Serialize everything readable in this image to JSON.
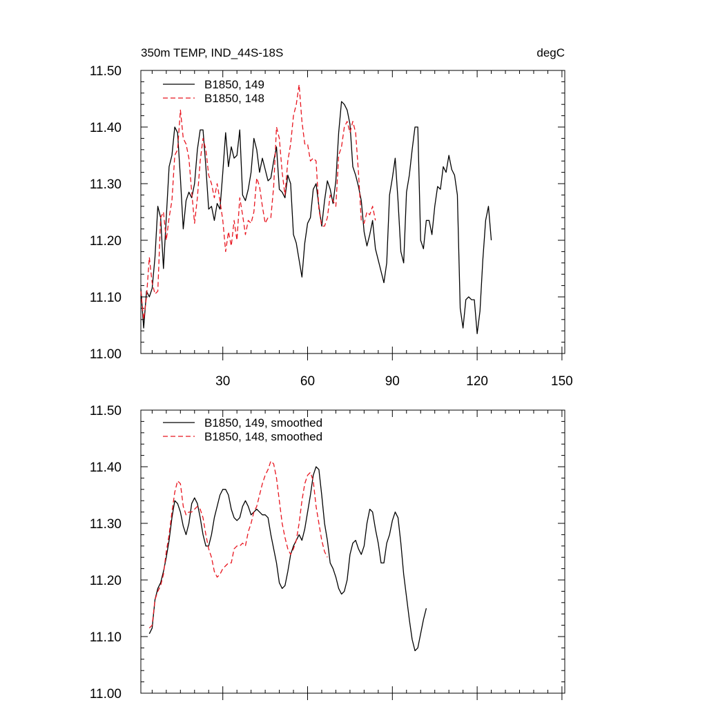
{
  "chart_data": [
    {
      "type": "line",
      "title": "350m TEMP, IND_44S-18S",
      "units": "degC",
      "xlim": [
        1,
        151
      ],
      "ylim": [
        11.0,
        11.5
      ],
      "xticks": [
        30,
        60,
        90,
        120,
        150
      ],
      "yticks": [
        "11.00",
        "11.10",
        "11.20",
        "11.30",
        "11.40",
        "11.50"
      ],
      "grid": false,
      "legend_position": "top-left",
      "series": [
        {
          "name": "B1850, 149",
          "color": "#000000",
          "dash": "solid",
          "x_start": 1,
          "values": [
            11.115,
            11.045,
            11.11,
            11.1,
            11.115,
            11.17,
            11.26,
            11.24,
            11.15,
            11.24,
            11.33,
            11.35,
            11.4,
            11.39,
            11.31,
            11.22,
            11.27,
            11.285,
            11.275,
            11.3,
            11.36,
            11.395,
            11.395,
            11.33,
            11.255,
            11.26,
            11.235,
            11.265,
            11.255,
            11.32,
            11.39,
            11.33,
            11.365,
            11.345,
            11.35,
            11.395,
            11.28,
            11.27,
            11.29,
            11.32,
            11.38,
            11.36,
            11.32,
            11.345,
            11.325,
            11.305,
            11.31,
            11.34,
            11.365,
            11.29,
            11.285,
            11.275,
            11.315,
            11.3,
            11.21,
            11.195,
            11.165,
            11.135,
            11.195,
            11.23,
            11.24,
            11.29,
            11.3,
            11.26,
            11.225,
            11.27,
            11.305,
            11.29,
            11.265,
            11.305,
            11.39,
            11.445,
            11.44,
            11.43,
            11.405,
            11.33,
            11.315,
            11.295,
            11.27,
            11.215,
            11.19,
            11.21,
            11.235,
            11.185,
            11.165,
            11.145,
            11.125,
            11.16,
            11.28,
            11.31,
            11.345,
            11.27,
            11.18,
            11.16,
            11.285,
            11.315,
            11.36,
            11.4,
            11.4,
            11.2,
            11.185,
            11.235,
            11.235,
            11.21,
            11.26,
            11.295,
            11.29,
            11.33,
            11.32,
            11.35,
            11.325,
            11.315,
            11.28,
            11.08,
            11.045,
            11.095,
            11.1,
            11.095,
            11.095,
            11.035,
            11.075,
            11.165,
            11.235,
            11.26,
            11.2
          ]
        },
        {
          "name": "B1850, 148",
          "color": "#e8141e",
          "dash": "dashed",
          "x_start": 1,
          "values": [
            11.11,
            11.06,
            11.1,
            11.17,
            11.125,
            11.105,
            11.11,
            11.24,
            11.25,
            11.2,
            11.24,
            11.27,
            11.35,
            11.36,
            11.43,
            11.38,
            11.37,
            11.345,
            11.285,
            11.23,
            11.275,
            11.34,
            11.38,
            11.36,
            11.315,
            11.3,
            11.275,
            11.3,
            11.27,
            11.235,
            11.18,
            11.215,
            11.19,
            11.235,
            11.2,
            11.275,
            11.245,
            11.21,
            11.235,
            11.23,
            11.25,
            11.31,
            11.295,
            11.26,
            11.23,
            11.24,
            11.24,
            11.295,
            11.4,
            11.38,
            11.32,
            11.28,
            11.34,
            11.37,
            11.42,
            11.44,
            11.475,
            11.41,
            11.37,
            11.37,
            11.34,
            11.345,
            11.34,
            11.255,
            11.225,
            11.225,
            11.24,
            11.28,
            11.27,
            11.26,
            11.35,
            11.365,
            11.4,
            11.41,
            11.39,
            11.41,
            11.39,
            11.32,
            11.235,
            11.23,
            11.25,
            11.245,
            11.26,
            11.235
          ]
        }
      ]
    },
    {
      "type": "line",
      "ylim": [
        11.0,
        11.5
      ],
      "xlim": [
        1,
        151
      ],
      "yticks": [
        "11.00",
        "11.10",
        "11.20",
        "11.30",
        "11.40",
        "11.50"
      ],
      "grid": false,
      "legend_position": "top-left",
      "series": [
        {
          "name": "B1850, 149, smoothed",
          "color": "#000000",
          "dash": "solid",
          "x_start": 4,
          "values": [
            11.105,
            11.115,
            11.165,
            11.185,
            11.195,
            11.215,
            11.24,
            11.27,
            11.31,
            11.34,
            11.335,
            11.32,
            11.295,
            11.28,
            11.3,
            11.335,
            11.345,
            11.335,
            11.31,
            11.28,
            11.26,
            11.26,
            11.28,
            11.31,
            11.33,
            11.35,
            11.36,
            11.36,
            11.35,
            11.325,
            11.31,
            11.305,
            11.31,
            11.33,
            11.34,
            11.33,
            11.315,
            11.32,
            11.325,
            11.32,
            11.315,
            11.315,
            11.31,
            11.28,
            11.255,
            11.23,
            11.195,
            11.185,
            11.19,
            11.215,
            11.245,
            11.26,
            11.27,
            11.28,
            11.27,
            11.29,
            11.32,
            11.35,
            11.385,
            11.4,
            11.395,
            11.35,
            11.3,
            11.27,
            11.23,
            11.22,
            11.205,
            11.185,
            11.175,
            11.18,
            11.2,
            11.245,
            11.265,
            11.27,
            11.255,
            11.245,
            11.26,
            11.3,
            11.325,
            11.32,
            11.29,
            11.265,
            11.23,
            11.23,
            11.265,
            11.28,
            11.305,
            11.32,
            11.31,
            11.265,
            11.21,
            11.17,
            11.13,
            11.095,
            11.075,
            11.08,
            11.105,
            11.13,
            11.15
          ]
        },
        {
          "name": "B1850, 148, smoothed",
          "color": "#e8141e",
          "dash": "dashed",
          "x_start": 4,
          "values": [
            11.115,
            11.12,
            11.165,
            11.18,
            11.19,
            11.21,
            11.25,
            11.28,
            11.32,
            11.355,
            11.375,
            11.37,
            11.33,
            11.315,
            11.32,
            11.32,
            11.325,
            11.33,
            11.325,
            11.31,
            11.28,
            11.255,
            11.24,
            11.215,
            11.205,
            11.21,
            11.22,
            11.225,
            11.23,
            11.23,
            11.255,
            11.26,
            11.26,
            11.265,
            11.26,
            11.285,
            11.3,
            11.32,
            11.33,
            11.35,
            11.37,
            11.385,
            11.395,
            11.41,
            11.405,
            11.38,
            11.34,
            11.3,
            11.275,
            11.255,
            11.245,
            11.255,
            11.27,
            11.3,
            11.34,
            11.37,
            11.385,
            11.39,
            11.375,
            11.33,
            11.3,
            11.27,
            11.25,
            11.24
          ]
        }
      ]
    }
  ]
}
